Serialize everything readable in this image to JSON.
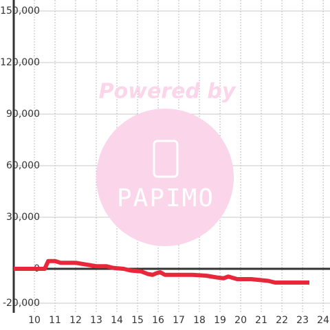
{
  "chart_data": {
    "type": "line",
    "x": [
      9,
      10.5,
      10.67,
      11,
      11.27,
      12,
      13,
      13.5,
      13.83,
      14.33,
      14.67,
      15.17,
      15.5,
      15.73,
      15.93,
      16.1,
      16.33,
      17.67,
      18.33,
      18.83,
      19.17,
      19.4,
      19.83,
      20.5,
      21.33,
      21.67,
      22,
      23.33
    ],
    "series": [
      {
        "color": "#e8273a",
        "values": [
          0,
          0,
          4500,
          4500,
          3500,
          3500,
          1500,
          1500,
          500,
          0,
          -1000,
          -1500,
          -3000,
          -3500,
          -2500,
          -2000,
          -3500,
          -3500,
          -4000,
          -5000,
          -5500,
          -4500,
          -6000,
          -6000,
          -7000,
          -8000,
          -8000,
          -8000
        ]
      }
    ],
    "xlim": [
      9,
      24.33
    ],
    "xticks": [
      10,
      11,
      12,
      13,
      14,
      15,
      16,
      17,
      18,
      19,
      20,
      21,
      22,
      23,
      24
    ],
    "ylim": [
      -25600,
      156400
    ],
    "yticks": [
      {
        "value": -20000,
        "label": "-20,000"
      },
      0,
      {
        "value": 30000,
        "label": "30,000"
      },
      {
        "value": 60000,
        "label": "60,000"
      },
      {
        "value": 90000,
        "label": "90,000"
      },
      {
        "value": 120000,
        "label": "120,000"
      },
      {
        "value": 150000,
        "label": "150,000"
      }
    ],
    "grid": true,
    "watermark": {
      "caption": "Powered by",
      "logo": "PAPIMO"
    }
  }
}
